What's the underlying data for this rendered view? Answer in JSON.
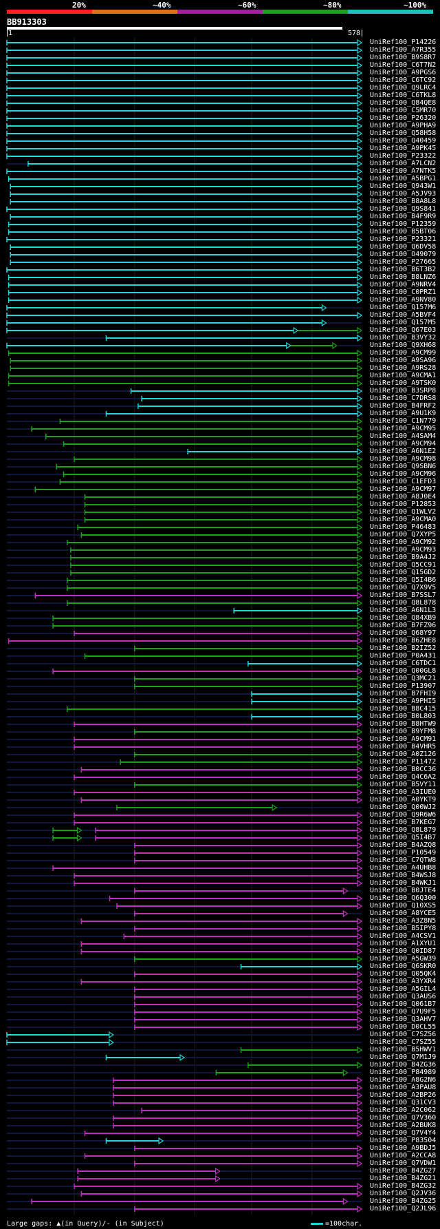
{
  "legend": [
    {
      "label": "20%",
      "color": "#ff2020"
    },
    {
      "label": "~40%",
      "color": "#e07020"
    },
    {
      "label": "~60%",
      "color": "#a020a0"
    },
    {
      "label": "~80%",
      "color": "#20a020"
    },
    {
      "label": "~100%",
      "color": "#20c0c0"
    }
  ],
  "query": {
    "name": "BB913303",
    "start": "1",
    "end": "578"
  },
  "colors": {
    "cyan": "#22d6dc",
    "green": "#1aa31a",
    "magenta": "#c030c0",
    "dim": "#101840"
  },
  "hits": [
    {
      "id": "UniRef100_P14226",
      "c": "cyan",
      "s": 0.0,
      "e": 1.0,
      "arrow": true
    },
    {
      "id": "UniRef100_A7R355",
      "c": "cyan",
      "s": 0.0,
      "e": 1.0,
      "arrow": true
    },
    {
      "id": "UniRef100_B9S8R7",
      "c": "cyan",
      "s": 0.0,
      "e": 1.0,
      "arrow": true
    },
    {
      "id": "UniRef100_C6T7N2",
      "c": "cyan",
      "s": 0.0,
      "e": 1.0,
      "arrow": true
    },
    {
      "id": "UniRef100_A9PGS6",
      "c": "cyan",
      "s": 0.0,
      "e": 1.0,
      "arrow": true
    },
    {
      "id": "UniRef100_C6TC92",
      "c": "cyan",
      "s": 0.0,
      "e": 1.0,
      "arrow": true
    },
    {
      "id": "UniRef100_Q9LRC4",
      "c": "cyan",
      "s": 0.0,
      "e": 1.0,
      "arrow": true
    },
    {
      "id": "UniRef100_C6TKL8",
      "c": "cyan",
      "s": 0.0,
      "e": 1.0,
      "arrow": true
    },
    {
      "id": "UniRef100_Q84QE8",
      "c": "cyan",
      "s": 0.0,
      "e": 1.0,
      "arrow": true
    },
    {
      "id": "UniRef100_C5MR70",
      "c": "cyan",
      "s": 0.0,
      "e": 1.0,
      "arrow": true
    },
    {
      "id": "UniRef100_P26320",
      "c": "cyan",
      "s": 0.0,
      "e": 1.0,
      "arrow": true
    },
    {
      "id": "UniRef100_A9PHA9",
      "c": "cyan",
      "s": 0.0,
      "e": 1.0,
      "arrow": true
    },
    {
      "id": "UniRef100_Q58H58",
      "c": "cyan",
      "s": 0.0,
      "e": 1.0,
      "arrow": true
    },
    {
      "id": "UniRef100_Q40459",
      "c": "cyan",
      "s": 0.0,
      "e": 1.0,
      "arrow": true
    },
    {
      "id": "UniRef100_A9PK45",
      "c": "cyan",
      "s": 0.0,
      "e": 1.0,
      "arrow": true
    },
    {
      "id": "UniRef100_P23322",
      "c": "cyan",
      "s": 0.0,
      "e": 1.0,
      "arrow": true
    },
    {
      "id": "UniRef100_A7LCN2",
      "c": "cyan",
      "s": 0.06,
      "e": 1.0,
      "arrow": true
    },
    {
      "id": "UniRef100_A7NTK5",
      "c": "cyan",
      "s": 0.0,
      "e": 1.0,
      "arrow": true
    },
    {
      "id": "UniRef100_A5BPG1",
      "c": "cyan",
      "s": 0.005,
      "e": 1.0,
      "arrow": true
    },
    {
      "id": "UniRef100_Q943W1",
      "c": "cyan",
      "s": 0.01,
      "e": 1.0,
      "arrow": true
    },
    {
      "id": "UniRef100_A5JV93",
      "c": "cyan",
      "s": 0.01,
      "e": 1.0,
      "arrow": true
    },
    {
      "id": "UniRef100_B8A8L8",
      "c": "cyan",
      "s": 0.01,
      "e": 1.0,
      "arrow": true
    },
    {
      "id": "UniRef100_Q9S841",
      "c": "cyan",
      "s": 0.0,
      "e": 1.0,
      "arrow": true
    },
    {
      "id": "UniRef100_B4F9R9",
      "c": "cyan",
      "s": 0.01,
      "e": 1.0,
      "arrow": true
    },
    {
      "id": "UniRef100_P12359",
      "c": "cyan",
      "s": 0.005,
      "e": 1.0,
      "arrow": true
    },
    {
      "id": "UniRef100_B5BT06",
      "c": "cyan",
      "s": 0.005,
      "e": 1.0,
      "arrow": true
    },
    {
      "id": "UniRef100_P23321",
      "c": "cyan",
      "s": 0.0,
      "e": 1.0,
      "arrow": true
    },
    {
      "id": "UniRef100_Q6DV58",
      "c": "cyan",
      "s": 0.01,
      "e": 1.0,
      "arrow": true
    },
    {
      "id": "UniRef100_O49079",
      "c": "cyan",
      "s": 0.01,
      "e": 1.0,
      "arrow": true
    },
    {
      "id": "UniRef100_P27665",
      "c": "cyan",
      "s": 0.01,
      "e": 1.0,
      "arrow": true
    },
    {
      "id": "UniRef100_B6T3B2",
      "c": "cyan",
      "s": 0.0,
      "e": 1.0,
      "arrow": true
    },
    {
      "id": "UniRef100_B8LNZ6",
      "c": "cyan",
      "s": 0.005,
      "e": 1.0,
      "arrow": true
    },
    {
      "id": "UniRef100_A9NRV4",
      "c": "cyan",
      "s": 0.005,
      "e": 1.0,
      "arrow": true
    },
    {
      "id": "UniRef100_C0PRZ1",
      "c": "cyan",
      "s": 0.005,
      "e": 1.0,
      "arrow": true
    },
    {
      "id": "UniRef100_A9NV80",
      "c": "cyan",
      "s": 0.005,
      "e": 1.0,
      "arrow": true
    },
    {
      "id": "UniRef100_Q157M6",
      "c": "cyan",
      "s": 0.0,
      "e": 0.9,
      "arrow": true
    },
    {
      "id": "UniRef100_A5BVF4",
      "c": "cyan",
      "s": 0.0,
      "e": 1.0,
      "arrow": true
    },
    {
      "id": "UniRef100_Q157M5",
      "c": "cyan",
      "s": 0.0,
      "e": 0.9,
      "arrow": true
    },
    {
      "id": "UniRef100_Q67E03",
      "c": "cyan",
      "s": 0.0,
      "e": 0.82,
      "arrow": true,
      "tail": "green",
      "te": 1.0
    },
    {
      "id": "UniRef100_B3VY32",
      "c": "cyan",
      "s": 0.28,
      "e": 1.0,
      "arrow": true
    },
    {
      "id": "UniRef100_Q9XH68",
      "c": "cyan",
      "s": 0.0,
      "e": 0.8,
      "arrow": true,
      "tail": "green",
      "te": 0.93
    },
    {
      "id": "UniRef100_A9CM99",
      "c": "green",
      "s": 0.005,
      "e": 1.0,
      "arrow": true
    },
    {
      "id": "UniRef100_A9SA96",
      "c": "green",
      "s": 0.01,
      "e": 1.0,
      "arrow": true
    },
    {
      "id": "UniRef100_A9RS28",
      "c": "green",
      "s": 0.01,
      "e": 1.0,
      "arrow": true
    },
    {
      "id": "UniRef100_A9CMA1",
      "c": "green",
      "s": 0.005,
      "e": 1.0,
      "arrow": true
    },
    {
      "id": "UniRef100_A9TSK0",
      "c": "green",
      "s": 0.005,
      "e": 1.0,
      "arrow": true
    },
    {
      "id": "UniRef100_B3SRP8",
      "c": "cyan",
      "s": 0.35,
      "e": 1.0,
      "arrow": true
    },
    {
      "id": "UniRef100_C7DRS8",
      "c": "cyan",
      "s": 0.38,
      "e": 1.0,
      "arrow": true
    },
    {
      "id": "UniRef100_B4FRF2",
      "c": "cyan",
      "s": 0.37,
      "e": 1.0,
      "arrow": true
    },
    {
      "id": "UniRef100_A9U1K9",
      "c": "cyan",
      "s": 0.28,
      "e": 1.0,
      "arrow": true
    },
    {
      "id": "UniRef100_C1N779",
      "c": "green",
      "s": 0.15,
      "e": 1.0,
      "arrow": true
    },
    {
      "id": "UniRef100_A9CM95",
      "c": "green",
      "s": 0.07,
      "e": 1.0,
      "arrow": true
    },
    {
      "id": "UniRef100_A4SAM4",
      "c": "green",
      "s": 0.11,
      "e": 1.0,
      "arrow": true
    },
    {
      "id": "UniRef100_A9CM94",
      "c": "green",
      "s": 0.16,
      "e": 1.0,
      "arrow": true
    },
    {
      "id": "UniRef100_A6N1E2",
      "c": "cyan",
      "s": 0.51,
      "e": 1.0,
      "arrow": true
    },
    {
      "id": "UniRef100_A9CM98",
      "c": "green",
      "s": 0.19,
      "e": 1.0,
      "arrow": true
    },
    {
      "id": "UniRef100_Q9SBN6",
      "c": "green",
      "s": 0.14,
      "e": 1.0,
      "arrow": true
    },
    {
      "id": "UniRef100_A9CM96",
      "c": "green",
      "s": 0.16,
      "e": 1.0,
      "arrow": true
    },
    {
      "id": "UniRef100_C1EFD3",
      "c": "green",
      "s": 0.15,
      "e": 1.0,
      "arrow": true
    },
    {
      "id": "UniRef100_A9CM97",
      "c": "green",
      "s": 0.08,
      "e": 1.0,
      "arrow": true
    },
    {
      "id": "UniRef100_A8J0E4",
      "c": "green",
      "s": 0.22,
      "e": 1.0,
      "arrow": true
    },
    {
      "id": "UniRef100_P12853",
      "c": "green",
      "s": 0.22,
      "e": 1.0,
      "arrow": true
    },
    {
      "id": "UniRef100_Q1WLV2",
      "c": "green",
      "s": 0.22,
      "e": 1.0,
      "arrow": true
    },
    {
      "id": "UniRef100_A9CMA0",
      "c": "green",
      "s": 0.22,
      "e": 1.0,
      "arrow": true
    },
    {
      "id": "UniRef100_P46483",
      "c": "green",
      "s": 0.2,
      "e": 1.0,
      "arrow": true
    },
    {
      "id": "UniRef100_Q7XYP5",
      "c": "green",
      "s": 0.21,
      "e": 1.0,
      "arrow": true
    },
    {
      "id": "UniRef100_A9CM92",
      "c": "green",
      "s": 0.17,
      "e": 1.0,
      "arrow": true
    },
    {
      "id": "UniRef100_A9CM93",
      "c": "green",
      "s": 0.18,
      "e": 1.0,
      "arrow": true
    },
    {
      "id": "UniRef100_B9A4J2",
      "c": "green",
      "s": 0.18,
      "e": 1.0,
      "arrow": true
    },
    {
      "id": "UniRef100_Q5CC91",
      "c": "green",
      "s": 0.18,
      "e": 1.0,
      "arrow": true
    },
    {
      "id": "UniRef100_Q15GD2",
      "c": "green",
      "s": 0.18,
      "e": 1.0,
      "arrow": true
    },
    {
      "id": "UniRef100_Q5I4B6",
      "c": "green",
      "s": 0.17,
      "e": 1.0,
      "arrow": true
    },
    {
      "id": "UniRef100_Q7X9V5",
      "c": "green",
      "s": 0.17,
      "e": 1.0,
      "arrow": true
    },
    {
      "id": "UniRef100_B7SSL7",
      "c": "magenta",
      "s": 0.08,
      "e": 1.0,
      "arrow": true
    },
    {
      "id": "UniRef100_Q8L878",
      "c": "green",
      "s": 0.17,
      "e": 1.0,
      "arrow": true
    },
    {
      "id": "UniRef100_A6N1L3",
      "c": "cyan",
      "s": 0.64,
      "e": 1.0,
      "arrow": true
    },
    {
      "id": "UniRef100_Q84XB9",
      "c": "green",
      "s": 0.13,
      "e": 1.0,
      "arrow": true
    },
    {
      "id": "UniRef100_B7FZ96",
      "c": "green",
      "s": 0.13,
      "e": 1.0,
      "arrow": true
    },
    {
      "id": "UniRef100_Q68Y97",
      "c": "magenta",
      "s": 0.19,
      "e": 1.0,
      "arrow": true
    },
    {
      "id": "UniRef100_B6ZHE8",
      "c": "magenta",
      "s": 0.005,
      "e": 1.0,
      "arrow": true
    },
    {
      "id": "UniRef100_B2IZ52",
      "c": "green",
      "s": 0.36,
      "e": 1.0,
      "arrow": true
    },
    {
      "id": "UniRef100_P0A431",
      "c": "green",
      "s": 0.22,
      "e": 1.0,
      "arrow": true
    },
    {
      "id": "UniRef100_C6TDC1",
      "c": "cyan",
      "s": 0.68,
      "e": 1.0,
      "arrow": true
    },
    {
      "id": "UniRef100_Q00GL8",
      "c": "magenta",
      "s": 0.13,
      "e": 1.0,
      "arrow": true
    },
    {
      "id": "UniRef100_Q3MC21",
      "c": "green",
      "s": 0.36,
      "e": 1.0,
      "arrow": true
    },
    {
      "id": "UniRef100_P13907",
      "c": "green",
      "s": 0.36,
      "e": 1.0,
      "arrow": true
    },
    {
      "id": "UniRef100_B7FHI9",
      "c": "cyan",
      "s": 0.69,
      "e": 1.0,
      "arrow": true
    },
    {
      "id": "UniRef100_A9PHI5",
      "c": "cyan",
      "s": 0.69,
      "e": 1.0,
      "arrow": true
    },
    {
      "id": "UniRef100_B8C415",
      "c": "green",
      "s": 0.17,
      "e": 1.0,
      "arrow": true
    },
    {
      "id": "UniRef100_B0L803",
      "c": "cyan",
      "s": 0.69,
      "e": 1.0,
      "arrow": true
    },
    {
      "id": "UniRef100_B8HTW9",
      "c": "magenta",
      "s": 0.19,
      "e": 1.0,
      "arrow": true
    },
    {
      "id": "UniRef100_B9YFM8",
      "c": "green",
      "s": 0.36,
      "e": 1.0,
      "arrow": true
    },
    {
      "id": "UniRef100_A9CM91",
      "c": "magenta",
      "s": 0.19,
      "e": 1.0,
      "arrow": true
    },
    {
      "id": "UniRef100_B4VHR5",
      "c": "magenta",
      "s": 0.19,
      "e": 1.0,
      "arrow": true
    },
    {
      "id": "UniRef100_A0Z126",
      "c": "green",
      "s": 0.36,
      "e": 1.0,
      "arrow": true
    },
    {
      "id": "UniRef100_P11472",
      "c": "green",
      "s": 0.32,
      "e": 1.0,
      "arrow": true
    },
    {
      "id": "UniRef100_B0CC36",
      "c": "magenta",
      "s": 0.21,
      "e": 1.0,
      "arrow": true
    },
    {
      "id": "UniRef100_Q4C6A2",
      "c": "magenta",
      "s": 0.19,
      "e": 1.0,
      "arrow": true
    },
    {
      "id": "UniRef100_B5VY11",
      "c": "green",
      "s": 0.36,
      "e": 1.0,
      "arrow": true
    },
    {
      "id": "UniRef100_A3IUE0",
      "c": "magenta",
      "s": 0.19,
      "e": 1.0,
      "arrow": true
    },
    {
      "id": "UniRef100_A0YKT9",
      "c": "magenta",
      "s": 0.21,
      "e": 1.0,
      "arrow": true
    },
    {
      "id": "UniRef100_Q00WJ2",
      "c": "green",
      "s": 0.31,
      "e": 0.76,
      "arrow": true
    },
    {
      "id": "UniRef100_Q9R6W6",
      "c": "magenta",
      "s": 0.19,
      "e": 1.0,
      "arrow": true
    },
    {
      "id": "UniRef100_B7KEG7",
      "c": "magenta",
      "s": 0.19,
      "e": 1.0,
      "arrow": true
    },
    {
      "id": "UniRef100_Q8L879",
      "c": "green",
      "s": 0.13,
      "e": 0.21,
      "arrow": true,
      "tail": "magenta",
      "ts": 0.25,
      "te": 1.0
    },
    {
      "id": "UniRef100_Q5I4B7",
      "c": "green",
      "s": 0.13,
      "e": 0.21,
      "arrow": true,
      "tail": "magenta",
      "ts": 0.25,
      "te": 1.0
    },
    {
      "id": "UniRef100_B4AZQ8",
      "c": "magenta",
      "s": 0.36,
      "e": 1.0,
      "arrow": true
    },
    {
      "id": "UniRef100_P10549",
      "c": "magenta",
      "s": 0.36,
      "e": 1.0,
      "arrow": true
    },
    {
      "id": "UniRef100_C7QTW8",
      "c": "magenta",
      "s": 0.36,
      "e": 1.0,
      "arrow": true
    },
    {
      "id": "UniRef100_A4UHB8",
      "c": "magenta",
      "s": 0.13,
      "e": 1.0,
      "arrow": true
    },
    {
      "id": "UniRef100_B4WSJ8",
      "c": "magenta",
      "s": 0.19,
      "e": 1.0,
      "arrow": true
    },
    {
      "id": "UniRef100_B4WKJ1",
      "c": "magenta",
      "s": 0.19,
      "e": 1.0,
      "arrow": true
    },
    {
      "id": "UniRef100_B0JTE4",
      "c": "magenta",
      "s": 0.36,
      "e": 0.96,
      "arrow": true
    },
    {
      "id": "UniRef100_Q6Q300",
      "c": "magenta",
      "s": 0.29,
      "e": 1.0,
      "arrow": true
    },
    {
      "id": "UniRef100_Q10XS5",
      "c": "magenta",
      "s": 0.31,
      "e": 1.0,
      "arrow": true
    },
    {
      "id": "UniRef100_A8YCE5",
      "c": "magenta",
      "s": 0.36,
      "e": 0.96,
      "arrow": true
    },
    {
      "id": "UniRef100_A3Z8N5",
      "c": "magenta",
      "s": 0.21,
      "e": 1.0,
      "arrow": true
    },
    {
      "id": "UniRef100_B5IPY8",
      "c": "magenta",
      "s": 0.36,
      "e": 1.0,
      "arrow": true
    },
    {
      "id": "UniRef100_A4CSV1",
      "c": "magenta",
      "s": 0.33,
      "e": 1.0,
      "arrow": true
    },
    {
      "id": "UniRef100_A1XYU1",
      "c": "magenta",
      "s": 0.21,
      "e": 1.0,
      "arrow": true
    },
    {
      "id": "UniRef100_Q0ID87",
      "c": "magenta",
      "s": 0.21,
      "e": 1.0,
      "arrow": true
    },
    {
      "id": "UniRef100_A5GW39",
      "c": "green",
      "s": 0.36,
      "e": 1.0,
      "arrow": true
    },
    {
      "id": "UniRef100_Q6SKR0",
      "c": "cyan",
      "s": 0.66,
      "e": 1.0,
      "arrow": true
    },
    {
      "id": "UniRef100_Q05QK4",
      "c": "magenta",
      "s": 0.36,
      "e": 1.0,
      "arrow": true
    },
    {
      "id": "UniRef100_A3YXR4",
      "c": "magenta",
      "s": 0.21,
      "e": 1.0,
      "arrow": true
    },
    {
      "id": "UniRef100_A5GIL4",
      "c": "magenta",
      "s": 0.36,
      "e": 1.0,
      "arrow": true
    },
    {
      "id": "UniRef100_Q3AUS6",
      "c": "magenta",
      "s": 0.36,
      "e": 1.0,
      "arrow": true
    },
    {
      "id": "UniRef100_Q061B7",
      "c": "magenta",
      "s": 0.36,
      "e": 1.0,
      "arrow": true
    },
    {
      "id": "UniRef100_Q7U9F5",
      "c": "magenta",
      "s": 0.36,
      "e": 1.0,
      "arrow": true
    },
    {
      "id": "UniRef100_Q3AHV7",
      "c": "magenta",
      "s": 0.36,
      "e": 1.0,
      "arrow": true
    },
    {
      "id": "UniRef100_D0CL55",
      "c": "magenta",
      "s": 0.36,
      "e": 1.0,
      "arrow": true
    },
    {
      "id": "UniRef100_C7SZ56",
      "c": "cyan",
      "s": 0.0,
      "e": 0.3,
      "arrow": true
    },
    {
      "id": "UniRef100_C7SZ55",
      "c": "cyan",
      "s": 0.0,
      "e": 0.3,
      "arrow": true
    },
    {
      "id": "UniRef100_B5HWV1",
      "c": "green",
      "s": 0.66,
      "e": 1.0,
      "arrow": true
    },
    {
      "id": "UniRef100_Q7M1J9",
      "c": "cyan",
      "s": 0.28,
      "e": 0.5,
      "arrow": true
    },
    {
      "id": "UniRef100_B4ZG36",
      "c": "green",
      "s": 0.68,
      "e": 1.0,
      "arrow": true
    },
    {
      "id": "UniRef100_P84989",
      "c": "green",
      "s": 0.59,
      "e": 0.96,
      "arrow": true
    },
    {
      "id": "UniRef100_A8G2N6",
      "c": "magenta",
      "s": 0.3,
      "e": 1.0,
      "arrow": true
    },
    {
      "id": "UniRef100_A3PAU8",
      "c": "magenta",
      "s": 0.3,
      "e": 1.0,
      "arrow": true
    },
    {
      "id": "UniRef100_A2BP26",
      "c": "magenta",
      "s": 0.3,
      "e": 1.0,
      "arrow": true
    },
    {
      "id": "UniRef100_Q31CV3",
      "c": "magenta",
      "s": 0.3,
      "e": 1.0,
      "arrow": true
    },
    {
      "id": "UniRef100_A2C062",
      "c": "magenta",
      "s": 0.38,
      "e": 1.0,
      "arrow": true
    },
    {
      "id": "UniRef100_Q7V360",
      "c": "magenta",
      "s": 0.3,
      "e": 1.0,
      "arrow": true
    },
    {
      "id": "UniRef100_A2BUK8",
      "c": "magenta",
      "s": 0.3,
      "e": 1.0,
      "arrow": true
    },
    {
      "id": "UniRef100_Q7V4Y4",
      "c": "magenta",
      "s": 0.22,
      "e": 1.0,
      "arrow": true
    },
    {
      "id": "UniRef100_P83504",
      "c": "cyan",
      "s": 0.28,
      "e": 0.44,
      "arrow": true
    },
    {
      "id": "UniRef100_A9BDJ5",
      "c": "magenta",
      "s": 0.36,
      "e": 1.0,
      "arrow": true
    },
    {
      "id": "UniRef100_A2CCA8",
      "c": "magenta",
      "s": 0.22,
      "e": 1.0,
      "arrow": true
    },
    {
      "id": "UniRef100_Q7VDW1",
      "c": "magenta",
      "s": 0.36,
      "e": 1.0,
      "arrow": true
    },
    {
      "id": "UniRef100_B4ZG27",
      "c": "magenta",
      "s": 0.2,
      "e": 0.6,
      "arrow": true
    },
    {
      "id": "UniRef100_B4ZG21",
      "c": "magenta",
      "s": 0.2,
      "e": 0.6,
      "arrow": true
    },
    {
      "id": "UniRef100_B4ZG32",
      "c": "magenta",
      "s": 0.19,
      "e": 1.0,
      "arrow": true
    },
    {
      "id": "UniRef100_Q2JV36",
      "c": "magenta",
      "s": 0.21,
      "e": 1.0,
      "arrow": true
    },
    {
      "id": "UniRef100_B4ZG25",
      "c": "magenta",
      "s": 0.07,
      "e": 0.96,
      "arrow": true
    },
    {
      "id": "UniRef100_Q2JL96",
      "c": "magenta",
      "s": 0.36,
      "e": 1.0,
      "arrow": true
    }
  ],
  "footer": {
    "gaps": "Large gaps: ▲(in Query)/- (in Subject)",
    "scale": "=100char."
  }
}
